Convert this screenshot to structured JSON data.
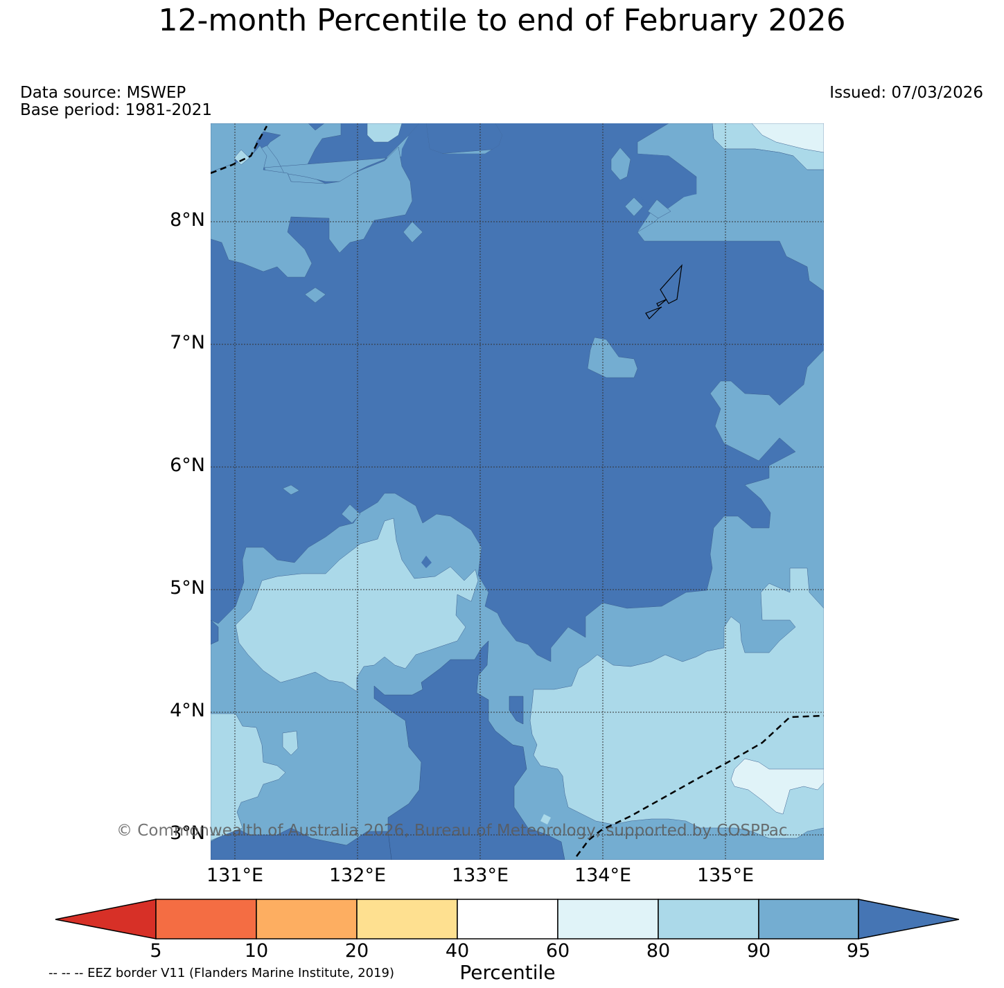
{
  "title": "12-month Percentile to end of February 2026",
  "data_source": "Data source: MSWEP",
  "base_period": "Base period: 1981-2021",
  "issued": "Issued: 07/03/2026",
  "copyright": "© Commonwealth of Australia 2026, Bureau of Meteorology, supported by COSPPac",
  "eez_note": "-- -- -- EEZ border V11 (Flanders Marine Institute, 2019)",
  "map": {
    "lon_range": [
      130.8,
      135.8
    ],
    "lat_range": [
      2.8,
      8.8
    ],
    "lat_labels": [
      "8°N",
      "7°N",
      "6°N",
      "5°N",
      "4°N",
      "3°N"
    ],
    "lon_labels": [
      "131°E",
      "132°E",
      "133°E",
      "134°E",
      "135°E"
    ],
    "background_color": "#4575b4"
  },
  "colorbar": {
    "label": "Percentile",
    "ticks": [
      "5",
      "10",
      "20",
      "40",
      "60",
      "80",
      "90",
      "95"
    ],
    "colors": {
      "below_5": "#d73027",
      "5_10": "#f46d43",
      "10_20": "#fdae61",
      "20_40": "#fee090",
      "40_60": "#ffffff",
      "60_80": "#e0f3f8",
      "80_90": "#abd9e9",
      "90_95": "#74add1",
      "above_95": "#4575b4"
    }
  }
}
